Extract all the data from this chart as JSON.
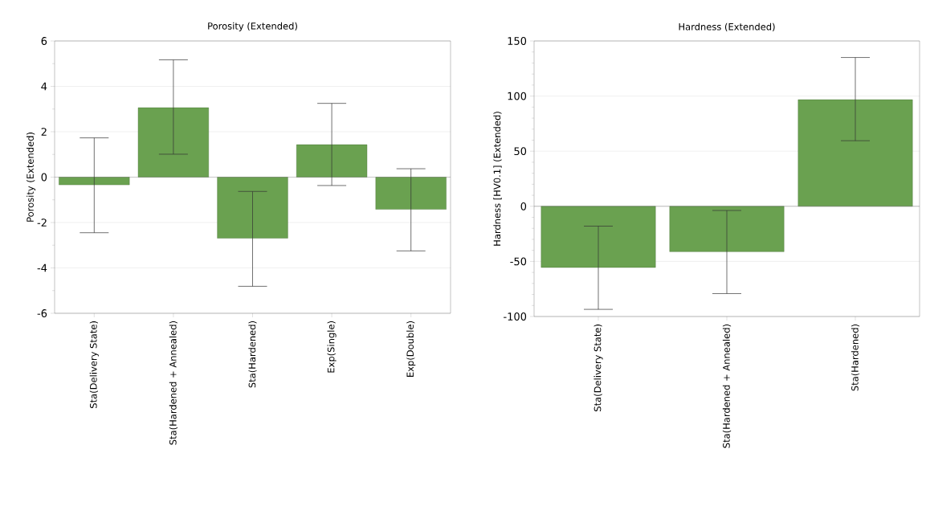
{
  "chart_data": [
    {
      "type": "bar",
      "title": "Porosity (Extended)",
      "ylabel": "Porosity (Extended)",
      "categories": [
        "Sta(Delivery State)",
        "Sta(Hardened + Annealed)",
        "Sta(Hardened)",
        "Exp(Single)",
        "Exp(Double)"
      ],
      "values": [
        -0.34,
        3.06,
        -2.69,
        1.43,
        -1.42
      ],
      "errors": [
        [
          -2.45,
          1.73
        ],
        [
          1.01,
          5.17
        ],
        [
          -4.81,
          -0.63
        ],
        [
          -0.37,
          3.25
        ],
        [
          -3.25,
          0.37
        ]
      ],
      "color": "#6aa150",
      "ylim": [
        -6,
        6
      ],
      "yticks": [
        -6,
        -4,
        -2,
        0,
        2,
        4,
        6
      ],
      "grid": "y"
    },
    {
      "type": "bar",
      "title": "Hardness (Extended)",
      "ylabel": "Hardness [HV0.1] (Extended)",
      "categories": [
        "Sta(Delivery State)",
        "Sta(Hardened + Annealed)",
        "Sta(Hardened)"
      ],
      "values": [
        -55.5,
        -41.2,
        96.7
      ],
      "errors": [
        [
          -93.5,
          -18
        ],
        [
          -79.2,
          -3.8
        ],
        [
          59.5,
          135
        ]
      ],
      "color": "#6aa150",
      "ylim": [
        -100,
        150
      ],
      "yticks": [
        -100,
        -50,
        0,
        50,
        100,
        150
      ],
      "grid": "y"
    }
  ]
}
